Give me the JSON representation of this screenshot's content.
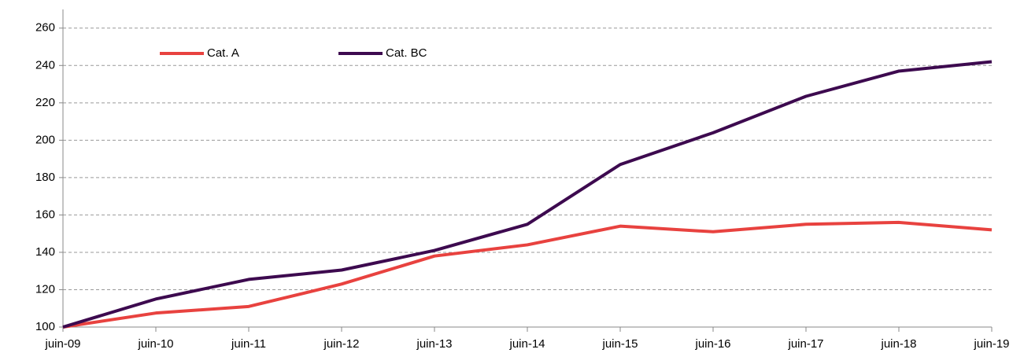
{
  "chart_data": {
    "type": "line",
    "categories": [
      "juin-09",
      "juin-10",
      "juin-11",
      "juin-12",
      "juin-13",
      "juin-14",
      "juin-15",
      "juin-16",
      "juin-17",
      "juin-18",
      "juin-19"
    ],
    "series": [
      {
        "name": "Cat. A",
        "color": "#e8423f",
        "values": [
          100,
          107.5,
          111,
          123,
          138,
          144,
          154,
          151,
          155,
          156,
          152
        ]
      },
      {
        "name": "Cat. BC",
        "color": "#3d0a4f",
        "values": [
          100,
          115,
          125.5,
          130.5,
          141,
          155,
          187,
          204,
          223.5,
          237,
          242
        ]
      }
    ],
    "ylim": [
      100,
      270
    ],
    "yticks": [
      100,
      120,
      140,
      160,
      180,
      200,
      220,
      240,
      260
    ],
    "grid": true
  }
}
